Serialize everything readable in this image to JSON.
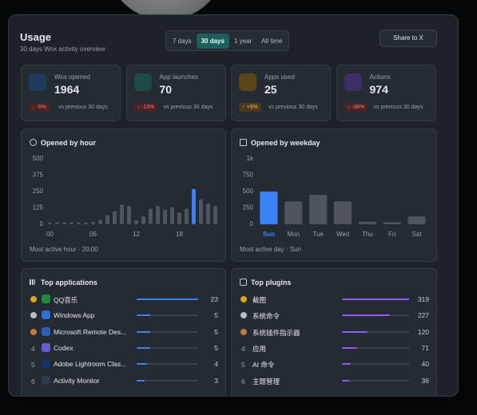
{
  "header": {
    "title": "Usage",
    "subtitle": "30 days Wox activity overview"
  },
  "tabs": [
    "7 days",
    "30 days",
    "1 year",
    "All time"
  ],
  "share_button": "Share to X",
  "stats": [
    {
      "label": "Wox opened",
      "value": "1964",
      "change": "↓ -5%",
      "note": "vs previous 30 days"
    },
    {
      "label": "App launches",
      "value": "70",
      "change": "↓ -13%",
      "note": "vs previous 30 days"
    },
    {
      "label": "Apps used",
      "value": "25",
      "change": "↑ +9%",
      "note": "vs previous 30 days"
    },
    {
      "label": "Actions",
      "value": "974",
      "change": "↓ -36%",
      "note": "vs previous 30 days"
    }
  ],
  "chart_data": [
    {
      "type": "bar",
      "title": "Opened by hour",
      "categories": [
        "00",
        null,
        null,
        null,
        null,
        null,
        "06",
        null,
        null,
        null,
        null,
        null,
        "12",
        null,
        null,
        null,
        null,
        null,
        "18",
        null,
        null,
        null,
        null,
        null
      ],
      "values": [
        15,
        15,
        15,
        15,
        15,
        15,
        20,
        35,
        70,
        100,
        150,
        140,
        30,
        60,
        120,
        140,
        110,
        130,
        90,
        120,
        270,
        190,
        160,
        140
      ],
      "color": "#50555d",
      "highlight_color": "#3b82f6",
      "ylim": [
        0,
        500
      ],
      "yticks": [
        0,
        125,
        250,
        375,
        500
      ],
      "footer": "Most active hour · 20:00"
    },
    {
      "type": "bar",
      "title": "Opened by weekday",
      "categories": [
        "Sun",
        "Mon",
        "Tue",
        "Wed",
        "Thu",
        "Fri",
        "Sat"
      ],
      "values": [
        500,
        350,
        450,
        350,
        40,
        30,
        120
      ],
      "color": "#50555d",
      "highlight_color": "#3b82f6",
      "ylim": [
        0,
        1000
      ],
      "yticks": [
        0,
        250,
        500,
        750,
        {
          "value": 1000,
          "label": "1k"
        }
      ],
      "footer": "Most active day · Sun"
    }
  ],
  "top_applications": {
    "title": "Top applications",
    "items": [
      {
        "name": "QQ音乐",
        "value": 23
      },
      {
        "name": "Windows App",
        "value": 5
      },
      {
        "name": "Microsoft Remote Des...",
        "value": 5
      },
      {
        "rank": "4",
        "name": "Codex",
        "value": 5
      },
      {
        "rank": "5",
        "name": "Adobe Lightroom Clas...",
        "value": 4
      },
      {
        "rank": "6",
        "name": "Activity Monitor",
        "value": 3
      }
    ]
  },
  "top_plugins": {
    "title": "Top plugins",
    "items": [
      {
        "name": "截图",
        "value": 319
      },
      {
        "name": "系统命令",
        "value": 227
      },
      {
        "name": "系统插件指示器",
        "value": 120
      },
      {
        "rank": "4",
        "name": "应用",
        "value": 71
      },
      {
        "rank": "5",
        "name": "AI 命令",
        "value": 40
      },
      {
        "rank": "6",
        "name": "主题管理",
        "value": 36
      }
    ]
  }
}
